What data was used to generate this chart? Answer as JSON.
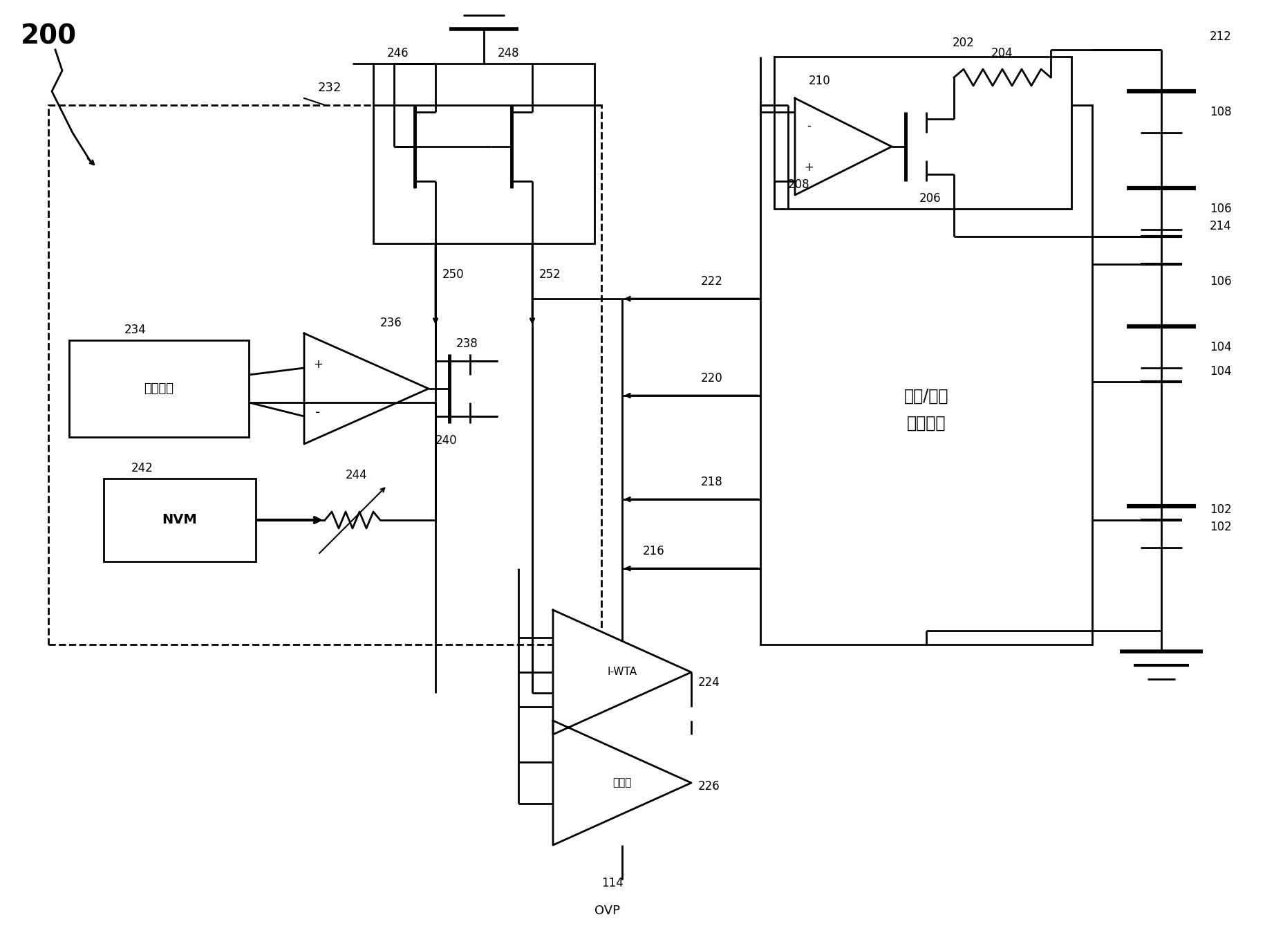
{
  "bg_color": "#ffffff",
  "line_color": "#000000",
  "lw": 2.0,
  "fig_label": "200",
  "label_232": "232",
  "label_234": "234",
  "label_236": "236",
  "label_238": "238",
  "label_240": "240",
  "label_242": "242",
  "label_244": "244",
  "label_246": "246",
  "label_248": "248",
  "label_250": "250",
  "label_252": "252",
  "label_202": "202",
  "label_204": "204",
  "label_206": "206",
  "label_208": "208",
  "label_210": "210",
  "label_212": "212",
  "label_214": "214",
  "label_216": "216",
  "label_218": "218",
  "label_220": "220",
  "label_222": "222",
  "label_224": "224",
  "label_226": "226",
  "label_114": "114",
  "label_108": "108",
  "label_106": "106",
  "label_104": "104",
  "label_102": "102",
  "text_bandgap": "带隙基准",
  "text_nvm": "NVM",
  "text_vcn": "电压/电流\n转换网络",
  "text_iwta": "I-WTA",
  "text_comparator": "比较器",
  "text_ovp": "OVP"
}
